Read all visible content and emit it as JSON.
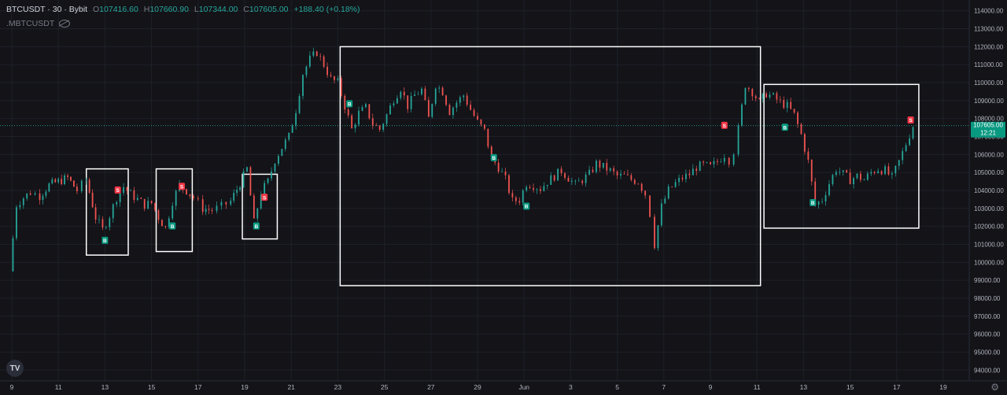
{
  "header": {
    "symbol": "BTCUSDT · 30 · Bybit",
    "open_label": "O",
    "open": "107416.60",
    "high_label": "H",
    "high": "107660.90",
    "low_label": "L",
    "low": "107344.00",
    "close_label": "C",
    "close": "107605.00",
    "change": "+188.40 (+0.18%)",
    "secondary_symbol": ".MBTCUSDT"
  },
  "price_tag": {
    "price": "107605.00",
    "countdown": "12:21"
  },
  "colors": {
    "up": "#26a69a",
    "down": "#ef5350",
    "buy_marker": "#089981",
    "sell_marker": "#f23645",
    "box": "#ffffff",
    "background": "#131318"
  },
  "icons": {
    "logo": "tradingview-logo-icon",
    "settings": "gear-icon",
    "visibility": "eye-crossed-icon"
  },
  "marker_labels": {
    "buy": "B",
    "sell": "S"
  },
  "chart_data": {
    "type": "line",
    "title": "BTCUSDT · 30 · Bybit",
    "ylim": [
      93400,
      114600
    ],
    "y_ticks": [
      94000,
      95000,
      96000,
      97000,
      98000,
      99000,
      100000,
      101000,
      102000,
      103000,
      104000,
      105000,
      106000,
      107000,
      108000,
      109000,
      110000,
      111000,
      112000,
      113000,
      114000
    ],
    "x_ticks": [
      "9",
      "11",
      "13",
      "15",
      "17",
      "19",
      "21",
      "23",
      "25",
      "27",
      "29",
      "Jun",
      "3",
      "5",
      "7",
      "9",
      "11",
      "13",
      "15",
      "17",
      "19"
    ],
    "series": [
      {
        "x": [
          8.9,
          9.2,
          9.5,
          9.8,
          10.2,
          10.6,
          11.0,
          11.4,
          11.8,
          12.2,
          12.6,
          12.9,
          13.2,
          13.5,
          13.8,
          14.1,
          14.4,
          14.7,
          15.0,
          15.3,
          15.6,
          15.9,
          16.2,
          16.5,
          16.8,
          17.2,
          17.6,
          18.0,
          18.4,
          18.8,
          19.1,
          19.4,
          19.7,
          20.0,
          20.3,
          20.6,
          20.9,
          21.2,
          21.5,
          21.8,
          22.1,
          22.4,
          22.7,
          23.0,
          23.3,
          23.6,
          23.9,
          24.2,
          24.5,
          24.8,
          25.1,
          25.4,
          25.7,
          26.0,
          26.3,
          26.6,
          26.9,
          27.2,
          27.5,
          27.8,
          28.1,
          28.4,
          28.7,
          29.0,
          29.3,
          29.6,
          29.9,
          30.2,
          30.5,
          30.8,
          31.1,
          31.4,
          31.7,
          32.0,
          32.3,
          32.6,
          32.9,
          33.2,
          33.5,
          33.8,
          34.1,
          34.4,
          34.7,
          35.0,
          35.3,
          35.6,
          35.9,
          36.2,
          36.4,
          36.6,
          36.9,
          37.2,
          37.5,
          37.8,
          38.1,
          38.4,
          38.7,
          39.0,
          39.3,
          39.6,
          39.8,
          40.0,
          40.2,
          40.5,
          40.8,
          41.1,
          41.4,
          41.7,
          42.0,
          42.3,
          42.6,
          42.9,
          43.2,
          43.5,
          43.8,
          44.1,
          44.4,
          44.7,
          45.0,
          45.3,
          45.6,
          45.9,
          46.2,
          46.5,
          46.8,
          47.1,
          47.4,
          47.7
        ],
        "y": [
          99500,
          103200,
          103600,
          103900,
          103700,
          104300,
          104500,
          104700,
          104000,
          104600,
          102500,
          101800,
          102600,
          103600,
          104200,
          103800,
          103500,
          103200,
          103300,
          102500,
          101900,
          103400,
          104300,
          104000,
          103600,
          103000,
          102900,
          103100,
          103400,
          104400,
          105200,
          102200,
          103900,
          104500,
          105700,
          106400,
          107000,
          108500,
          110500,
          111300,
          111700,
          111000,
          110200,
          110000,
          108700,
          107400,
          108300,
          108600,
          107700,
          107400,
          108200,
          109100,
          109700,
          108700,
          109300,
          109600,
          108000,
          109900,
          109500,
          108400,
          108900,
          109300,
          108500,
          107800,
          107300,
          105800,
          105300,
          104600,
          103400,
          103500,
          104400,
          104300,
          104100,
          104500,
          104800,
          105100,
          104700,
          104300,
          104600,
          104900,
          105500,
          105300,
          105100,
          104800,
          104800,
          104600,
          104500,
          103800,
          102700,
          101000,
          103100,
          104000,
          104400,
          104700,
          104900,
          105300,
          105400,
          105300,
          105600,
          106000,
          105700,
          106200,
          107400,
          109900,
          109500,
          108900,
          109400,
          109200,
          108900,
          108700,
          108200,
          107100,
          105600,
          103200,
          103500,
          104400,
          105200,
          104900,
          104600,
          104800,
          104600,
          105000,
          105200,
          105100,
          104700,
          105600,
          106600,
          107600
        ],
        "up_color": "#26a69a",
        "down_color": "#ef5350"
      }
    ],
    "boxes": [
      {
        "x0": 12.2,
        "x1": 14.0,
        "y0": 100400,
        "y1": 105200
      },
      {
        "x0": 15.2,
        "x1": 16.75,
        "y0": 100600,
        "y1": 105200
      },
      {
        "x0": 18.9,
        "x1": 20.4,
        "y0": 101300,
        "y1": 104900
      },
      {
        "x0": 23.1,
        "x1": 41.15,
        "y0": 98700,
        "y1": 112000
      },
      {
        "x0": 41.3,
        "x1": 47.95,
        "y0": 101900,
        "y1": 109900
      }
    ],
    "markers": [
      {
        "type": "buy",
        "x": 13.0,
        "y": 101200
      },
      {
        "type": "sell",
        "x": 13.55,
        "y": 104000
      },
      {
        "type": "buy",
        "x": 15.9,
        "y": 102000
      },
      {
        "type": "sell",
        "x": 16.3,
        "y": 104200
      },
      {
        "type": "buy",
        "x": 19.5,
        "y": 102000
      },
      {
        "type": "sell",
        "x": 19.85,
        "y": 103600
      },
      {
        "type": "buy",
        "x": 23.5,
        "y": 108800
      },
      {
        "type": "buy",
        "x": 29.7,
        "y": 105800
      },
      {
        "type": "buy",
        "x": 31.1,
        "y": 103100
      },
      {
        "type": "sell",
        "x": 39.6,
        "y": 107600
      },
      {
        "type": "buy",
        "x": 42.2,
        "y": 107500
      },
      {
        "type": "buy",
        "x": 43.4,
        "y": 103300
      },
      {
        "type": "sell",
        "x": 47.6,
        "y": 107900
      }
    ],
    "last_price": 107605.0
  }
}
